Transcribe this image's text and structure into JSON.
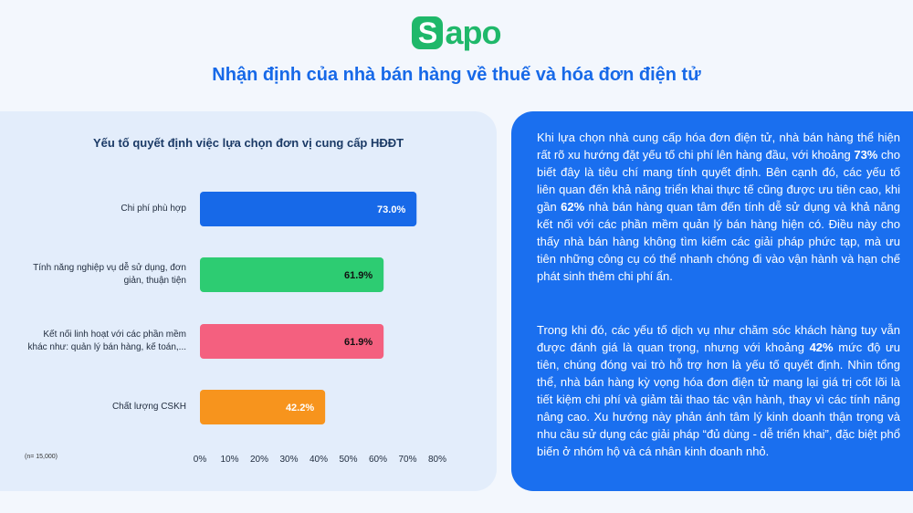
{
  "logo": {
    "letter": "S",
    "rest": "apo"
  },
  "main_title": "Nhận định của nhà bán hàng về thuế và hóa đơn điện tử",
  "chart_data": {
    "type": "bar",
    "orientation": "horizontal",
    "title": "Yếu tố quyết định việc lựa chọn đơn vị cung cấp HĐĐT",
    "categories": [
      [
        "Chi phí phù hợp"
      ],
      [
        "Tính năng nghiệp vụ dễ sử dụng, đơn",
        "giản, thuận tiện"
      ],
      [
        "Kết nối linh hoạt với các phần mềm",
        "khác như: quản lý bán hàng, kế toán,..."
      ],
      [
        "Chất lượng CSKH"
      ]
    ],
    "values": [
      73.0,
      61.9,
      61.9,
      42.2
    ],
    "value_labels": [
      "73.0%",
      "61.9%",
      "61.9%",
      "42.2%"
    ],
    "colors": [
      "#1769e8",
      "#2dcc72",
      "#f4607f",
      "#f7941d"
    ],
    "value_label_colors": [
      "#ffffff",
      "#111111",
      "#111111",
      "#ffffff"
    ],
    "xlim": [
      0,
      80
    ],
    "xticks": [
      "0%",
      "10%",
      "20%",
      "30%",
      "40%",
      "50%",
      "60%",
      "70%",
      "80%"
    ],
    "grid": false,
    "legend": "none",
    "note": "(n= 15,000)"
  },
  "paragraphs": [
    [
      {
        "t": "Khi lựa chọn nhà cung cấp hóa đơn điện tử, nhà bán hàng thể hiện rất rõ xu hướng đặt yếu tố chi phí lên hàng đầu, với khoảng ",
        "b": false
      },
      {
        "t": "73%",
        "b": true
      },
      {
        "t": " cho biết đây là tiêu chí mang tính quyết định. Bên cạnh đó, các yếu tố liên quan đến khả năng triển khai thực tế cũng được ưu tiên cao, khi gần ",
        "b": false
      },
      {
        "t": "62%",
        "b": true
      },
      {
        "t": " nhà bán hàng quan tâm đến tính dễ sử dụng và khả năng kết nối với các phần mềm quản lý bán hàng hiện có. Điều này cho thấy nhà bán hàng không tìm kiếm các giải pháp phức tạp, mà ưu tiên những công cụ có thể nhanh chóng đi vào vận hành và hạn chế phát sinh thêm chi phí ẩn.",
        "b": false
      }
    ],
    [
      {
        "t": "Trong khi đó, các yếu tố dịch vụ như chăm sóc khách hàng tuy vẫn được đánh giá là quan trọng, nhưng với khoảng ",
        "b": false
      },
      {
        "t": "42%",
        "b": true
      },
      {
        "t": " mức độ ưu tiên, chúng đóng vai trò hỗ trợ hơn là yếu tố quyết định. Nhìn tổng thể, nhà bán hàng kỳ vọng hóa đơn điện tử mang lại giá trị cốt lõi là tiết kiệm chi phí và giảm tải thao tác vận hành, thay vì các tính năng nâng cao. Xu hướng này phản ánh tâm lý kinh doanh thận trọng và nhu cầu sử dụng các giải pháp “đủ dùng - dễ triển khai”, đặc biệt phổ biến ở nhóm hộ và cá nhân kinh doanh nhỏ.",
        "b": false
      }
    ]
  ]
}
